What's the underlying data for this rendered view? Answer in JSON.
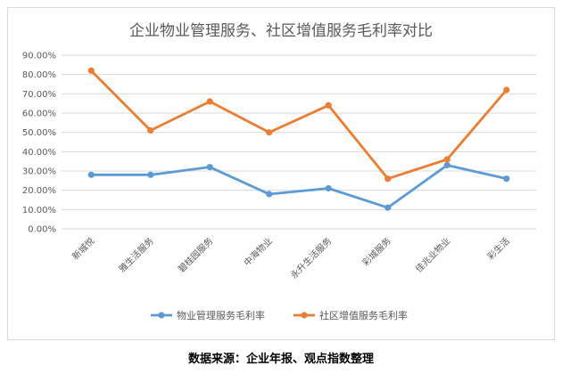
{
  "chart_data": {
    "type": "line",
    "title": "企业物业管理服务、社区增值服务毛利率对比",
    "categories": [
      "新城悦",
      "雅生活服务",
      "碧桂园服务",
      "中海物业",
      "永升生活服务",
      "彩城服务",
      "佳兆业物业",
      "彩生活"
    ],
    "series": [
      {
        "name": "物业管理服务毛利率",
        "color": "#5b9bd5",
        "values": [
          0.28,
          0.28,
          0.32,
          0.18,
          0.21,
          0.11,
          0.33,
          0.26
        ]
      },
      {
        "name": "社区增值服务毛利率",
        "color": "#ed7d31",
        "values": [
          0.82,
          0.51,
          0.66,
          0.5,
          0.64,
          0.26,
          0.36,
          0.72
        ]
      }
    ],
    "ylim": [
      0,
      0.9
    ],
    "yticks": [
      "0.00%",
      "10.00%",
      "20.00%",
      "30.00%",
      "40.00%",
      "50.00%",
      "60.00%",
      "70.00%",
      "80.00%",
      "90.00%"
    ],
    "grid": true,
    "legend": "bottom"
  },
  "source_note": "数据来源：企业年报、观点指数整理"
}
